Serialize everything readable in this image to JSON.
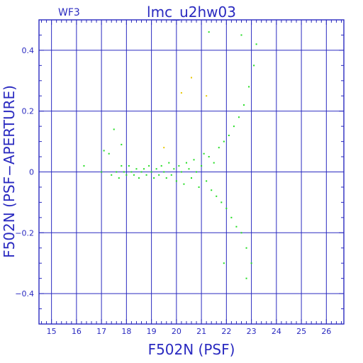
{
  "chart_data": {
    "type": "scatter",
    "title": "lmc_u2hw03",
    "subtitle": "WF3",
    "xlabel": "F502N (PSF)",
    "ylabel": "F502N (PSF−APERTURE)",
    "xlim": [
      14.5,
      26.7
    ],
    "ylim": [
      -0.5,
      0.5
    ],
    "xticks": [
      15,
      16,
      17,
      18,
      19,
      20,
      21,
      22,
      23,
      24,
      25,
      26
    ],
    "xtick_labels": [
      "15",
      "16",
      "17",
      "18",
      "19",
      "20",
      "21",
      "22",
      "23",
      "24",
      "25",
      "26"
    ],
    "yticks": [
      -0.4,
      -0.2,
      0,
      0.2,
      0.4
    ],
    "ytick_labels": [
      "−0.4",
      "−0.2",
      "0",
      "0.2",
      "0.4"
    ],
    "grid": true,
    "colors": {
      "axes": "#2a2ac0",
      "main": "#22dd22",
      "outlier": "#e8c800"
    },
    "series": [
      {
        "color": "#22dd22",
        "points": [
          [
            16.3,
            0.02
          ],
          [
            17.0,
            0.0
          ],
          [
            17.1,
            0.07
          ],
          [
            17.3,
            0.06
          ],
          [
            17.4,
            -0.01
          ],
          [
            17.6,
            0.0
          ],
          [
            17.7,
            -0.02
          ],
          [
            17.8,
            0.02
          ],
          [
            17.9,
            0.0
          ],
          [
            18.0,
            -0.01
          ],
          [
            18.1,
            0.02
          ],
          [
            18.2,
            0.0
          ],
          [
            18.3,
            -0.01
          ],
          [
            18.4,
            0.01
          ],
          [
            18.5,
            -0.02
          ],
          [
            18.6,
            0.0
          ],
          [
            18.7,
            0.01
          ],
          [
            18.8,
            -0.01
          ],
          [
            18.9,
            0.02
          ],
          [
            19.0,
            0.0
          ],
          [
            19.1,
            -0.02
          ],
          [
            19.2,
            0.01
          ],
          [
            19.3,
            -0.01
          ],
          [
            19.4,
            0.02
          ],
          [
            19.5,
            0.0
          ],
          [
            19.6,
            -0.02
          ],
          [
            19.7,
            0.03
          ],
          [
            19.8,
            -0.01
          ],
          [
            19.9,
            0.01
          ],
          [
            20.0,
            -0.03
          ],
          [
            20.1,
            0.02
          ],
          [
            20.2,
            0.0
          ],
          [
            20.3,
            -0.04
          ],
          [
            20.4,
            0.03
          ],
          [
            20.5,
            0.01
          ],
          [
            20.6,
            -0.02
          ],
          [
            20.7,
            0.04
          ],
          [
            20.8,
            0.0
          ],
          [
            20.9,
            -0.05
          ],
          [
            21.0,
            0.02
          ],
          [
            21.1,
            0.06
          ],
          [
            21.2,
            -0.03
          ],
          [
            21.3,
            0.05
          ],
          [
            21.4,
            -0.06
          ],
          [
            21.5,
            0.03
          ],
          [
            21.6,
            -0.08
          ],
          [
            21.7,
            0.08
          ],
          [
            21.8,
            -0.1
          ],
          [
            21.9,
            0.1
          ],
          [
            22.0,
            -0.12
          ],
          [
            22.1,
            0.12
          ],
          [
            22.2,
            -0.15
          ],
          [
            22.3,
            0.15
          ],
          [
            22.4,
            -0.18
          ],
          [
            22.5,
            0.18
          ],
          [
            22.6,
            -0.2
          ],
          [
            22.7,
            0.22
          ],
          [
            22.8,
            -0.25
          ],
          [
            22.9,
            0.28
          ],
          [
            23.0,
            -0.3
          ],
          [
            23.1,
            0.35
          ],
          [
            23.2,
            0.42
          ],
          [
            22.6,
            0.45
          ],
          [
            21.3,
            0.46
          ],
          [
            17.5,
            0.14
          ],
          [
            17.8,
            0.09
          ],
          [
            22.8,
            -0.35
          ],
          [
            21.9,
            -0.3
          ]
        ]
      },
      {
        "color": "#e8c800",
        "points": [
          [
            20.2,
            0.26
          ],
          [
            20.6,
            0.31
          ],
          [
            21.2,
            0.25
          ],
          [
            19.5,
            0.08
          ]
        ]
      }
    ]
  }
}
